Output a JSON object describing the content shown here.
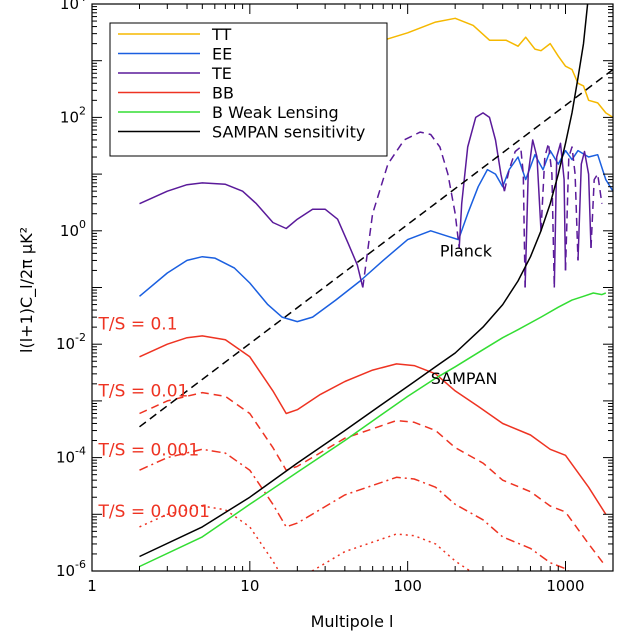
{
  "chart_data": {
    "type": "line",
    "title": "",
    "xlabel": "Multipole l",
    "ylabel": "l(l+1)C_l/2π μK²",
    "xscale": "log",
    "yscale": "log",
    "xlim": [
      1,
      2000
    ],
    "ylim": [
      1e-06,
      10000
    ],
    "x_ticks": [
      1,
      10,
      100,
      1000
    ],
    "y_ticks": [
      1e-06,
      0.0001,
      0.01,
      1,
      100,
      10000
    ],
    "x_tick_labels": [
      "1",
      "10",
      "100",
      "1000"
    ],
    "y_tick_labels": [
      {
        "base": "10",
        "exp": "-6"
      },
      {
        "base": "10",
        "exp": "-4"
      },
      {
        "base": "10",
        "exp": "-2"
      },
      {
        "base": "10",
        "exp": "0"
      },
      {
        "base": "10",
        "exp": "2"
      },
      {
        "base": "10",
        "exp": "4"
      }
    ],
    "legend_position": "top-left",
    "grid": false,
    "legend": [
      {
        "label": "TT",
        "color": "#f5b800"
      },
      {
        "label": "EE",
        "color": "#1a5fe0"
      },
      {
        "label": "TE",
        "color": "#5a1a9a"
      },
      {
        "label": "BB",
        "color": "#ee3322"
      },
      {
        "label": "B Weak Lensing",
        "color": "#33dd33"
      },
      {
        "label": "SAMPAN sensitivity",
        "color": "#000000"
      }
    ],
    "annotations": [
      {
        "text": "Planck",
        "x": 160,
        "y": 0.35
      },
      {
        "text": "SAMPAN",
        "x": 140,
        "y": 0.002
      },
      {
        "text": "T/S = 0.1",
        "x": 1.1,
        "y": 0.018
      },
      {
        "text": "T/S = 0.01",
        "x": 1.1,
        "y": 0.0012
      },
      {
        "text": "T/S = 0.001",
        "x": 1.1,
        "y": 0.00011
      },
      {
        "text": "T/S = 0.0001",
        "x": 1.1,
        "y": 9e-06
      }
    ],
    "series": [
      {
        "name": "TT",
        "color": "#f5b800",
        "style": "solid",
        "points": [
          [
            2,
            1000
          ],
          [
            3,
            950
          ],
          [
            5,
            880
          ],
          [
            8,
            860
          ],
          [
            12,
            900
          ],
          [
            20,
            1050
          ],
          [
            35,
            1400
          ],
          [
            60,
            2000
          ],
          [
            100,
            3100
          ],
          [
            150,
            4800
          ],
          [
            200,
            5600
          ],
          [
            260,
            4200
          ],
          [
            330,
            2300
          ],
          [
            420,
            2300
          ],
          [
            500,
            1800
          ],
          [
            560,
            2600
          ],
          [
            640,
            1600
          ],
          [
            700,
            1500
          ],
          [
            800,
            2000
          ],
          [
            900,
            1200
          ],
          [
            1000,
            800
          ],
          [
            1100,
            700
          ],
          [
            1200,
            400
          ],
          [
            1300,
            360
          ],
          [
            1400,
            200
          ],
          [
            1600,
            180
          ],
          [
            1800,
            120
          ],
          [
            2000,
            100
          ]
        ]
      },
      {
        "name": "EE",
        "color": "#1a5fe0",
        "style": "solid",
        "points": [
          [
            2,
            0.07
          ],
          [
            3,
            0.18
          ],
          [
            4,
            0.3
          ],
          [
            5,
            0.35
          ],
          [
            6,
            0.33
          ],
          [
            8,
            0.22
          ],
          [
            10,
            0.12
          ],
          [
            13,
            0.05
          ],
          [
            16,
            0.03
          ],
          [
            20,
            0.025
          ],
          [
            25,
            0.03
          ],
          [
            35,
            0.06
          ],
          [
            50,
            0.13
          ],
          [
            70,
            0.3
          ],
          [
            100,
            0.7
          ],
          [
            140,
            1.0
          ],
          [
            180,
            0.8
          ],
          [
            210,
            0.7
          ],
          [
            240,
            2.0
          ],
          [
            280,
            6
          ],
          [
            320,
            12
          ],
          [
            360,
            10
          ],
          [
            400,
            6
          ],
          [
            440,
            12
          ],
          [
            500,
            20
          ],
          [
            560,
            8
          ],
          [
            640,
            22
          ],
          [
            720,
            12
          ],
          [
            800,
            26
          ],
          [
            900,
            15
          ],
          [
            1000,
            26
          ],
          [
            1100,
            18
          ],
          [
            1200,
            26
          ],
          [
            1400,
            20
          ],
          [
            1600,
            22
          ],
          [
            1800,
            8
          ],
          [
            2000,
            5
          ]
        ]
      },
      {
        "name": "TE",
        "color": "#5a1a9a",
        "style": "solid",
        "points": [
          [
            2,
            3.0
          ],
          [
            3,
            5
          ],
          [
            4,
            6.5
          ],
          [
            5,
            7
          ],
          [
            7,
            6.6
          ],
          [
            9,
            5
          ],
          [
            11,
            3
          ],
          [
            14,
            1.4
          ],
          [
            17,
            1.1
          ],
          [
            20,
            1.6
          ],
          [
            25,
            2.4
          ],
          [
            30,
            2.4
          ],
          [
            36,
            1.6
          ],
          [
            42,
            0.6
          ],
          [
            48,
            0.25
          ],
          [
            52,
            0.1
          ]
        ]
      },
      {
        "name": "TE",
        "color": "#5a1a9a",
        "style": "dashed",
        "points": [
          [
            52,
            0.1
          ],
          [
            60,
            2
          ],
          [
            75,
            15
          ],
          [
            95,
            40
          ],
          [
            120,
            55
          ],
          [
            140,
            50
          ],
          [
            160,
            30
          ],
          [
            180,
            10
          ],
          [
            200,
            2
          ],
          [
            212,
            0.5
          ]
        ]
      },
      {
        "name": "TE",
        "color": "#5a1a9a",
        "style": "solid",
        "points": [
          [
            212,
            0.5
          ],
          [
            220,
            3
          ],
          [
            240,
            30
          ],
          [
            270,
            100
          ],
          [
            300,
            120
          ],
          [
            330,
            100
          ],
          [
            360,
            40
          ],
          [
            390,
            10
          ],
          [
            410,
            5
          ]
        ]
      },
      {
        "name": "TE",
        "color": "#5a1a9a",
        "style": "dashed",
        "points": [
          [
            410,
            5
          ],
          [
            440,
            12
          ],
          [
            480,
            25
          ],
          [
            520,
            30
          ],
          [
            540,
            10
          ],
          [
            555,
            0.1
          ]
        ]
      },
      {
        "name": "TE",
        "color": "#5a1a9a",
        "style": "solid",
        "points": [
          [
            555,
            0.1
          ],
          [
            580,
            10
          ],
          [
            620,
            40
          ],
          [
            660,
            20
          ],
          [
            700,
            1
          ]
        ]
      },
      {
        "name": "TE",
        "color": "#5a1a9a",
        "style": "dashed",
        "points": [
          [
            700,
            1
          ],
          [
            740,
            20
          ],
          [
            780,
            35
          ],
          [
            820,
            10
          ],
          [
            850,
            0.1
          ]
        ]
      },
      {
        "name": "TE",
        "color": "#5a1a9a",
        "style": "solid",
        "points": [
          [
            850,
            0.1
          ],
          [
            880,
            20
          ],
          [
            930,
            35
          ],
          [
            980,
            8
          ],
          [
            1000,
            0.2
          ]
        ]
      },
      {
        "name": "TE",
        "color": "#5a1a9a",
        "style": "dashed",
        "points": [
          [
            1000,
            0.2
          ],
          [
            1050,
            20
          ],
          [
            1100,
            30
          ],
          [
            1150,
            10
          ],
          [
            1200,
            0.3
          ]
        ]
      },
      {
        "name": "TE",
        "color": "#5a1a9a",
        "style": "solid",
        "points": [
          [
            1200,
            0.3
          ],
          [
            1260,
            15
          ],
          [
            1320,
            25
          ],
          [
            1400,
            10
          ],
          [
            1450,
            0.5
          ]
        ]
      },
      {
        "name": "TE",
        "color": "#5a1a9a",
        "style": "dashed",
        "points": [
          [
            1450,
            0.5
          ],
          [
            1520,
            8
          ],
          [
            1600,
            10
          ],
          [
            1700,
            3
          ]
        ]
      },
      {
        "name": "BB",
        "color": "#ee3322",
        "style": "solid",
        "points": [
          [
            2,
            0.006
          ],
          [
            3,
            0.01
          ],
          [
            4,
            0.013
          ],
          [
            5,
            0.014
          ],
          [
            7,
            0.012
          ],
          [
            10,
            0.006
          ],
          [
            14,
            0.0015
          ],
          [
            17,
            0.0006
          ],
          [
            20,
            0.0007
          ],
          [
            28,
            0.0013
          ],
          [
            40,
            0.0022
          ],
          [
            60,
            0.0035
          ],
          [
            85,
            0.0045
          ],
          [
            110,
            0.0042
          ],
          [
            150,
            0.003
          ],
          [
            200,
            0.0015
          ],
          [
            280,
            0.0008
          ],
          [
            400,
            0.0004
          ],
          [
            600,
            0.00025
          ],
          [
            800,
            0.00014
          ],
          [
            1000,
            0.00011
          ],
          [
            1400,
            3e-05
          ],
          [
            1800,
            1e-05
          ]
        ]
      },
      {
        "name": "BB",
        "color": "#ee3322",
        "style": "dashed",
        "points": [
          [
            2,
            0.0006
          ],
          [
            3,
            0.001
          ],
          [
            5,
            0.0014
          ],
          [
            7,
            0.0012
          ],
          [
            10,
            0.0006
          ],
          [
            14,
            0.00015
          ],
          [
            17,
            6e-05
          ],
          [
            20,
            7e-05
          ],
          [
            40,
            0.00022
          ],
          [
            85,
            0.00045
          ],
          [
            110,
            0.00042
          ],
          [
            150,
            0.0003
          ],
          [
            200,
            0.00015
          ],
          [
            300,
            8e-05
          ],
          [
            400,
            4e-05
          ],
          [
            600,
            2.5e-05
          ],
          [
            800,
            1.4e-05
          ],
          [
            1000,
            1.1e-05
          ],
          [
            1400,
            3e-06
          ],
          [
            1800,
            1.2e-06
          ]
        ]
      },
      {
        "name": "BB",
        "color": "#ee3322",
        "style": "dashdot",
        "points": [
          [
            2,
            6e-05
          ],
          [
            3,
            0.0001
          ],
          [
            5,
            0.00014
          ],
          [
            7,
            0.00012
          ],
          [
            10,
            6e-05
          ],
          [
            14,
            1.5e-05
          ],
          [
            17,
            6e-06
          ],
          [
            20,
            7e-06
          ],
          [
            40,
            2.2e-05
          ],
          [
            85,
            4.5e-05
          ],
          [
            110,
            4.2e-05
          ],
          [
            150,
            3e-05
          ],
          [
            200,
            1.5e-05
          ],
          [
            300,
            8e-06
          ],
          [
            400,
            4e-06
          ],
          [
            600,
            2.5e-06
          ],
          [
            800,
            1.4e-06
          ],
          [
            1000,
            1.1e-06
          ],
          [
            1200,
            7e-07
          ]
        ]
      },
      {
        "name": "BB",
        "color": "#ee3322",
        "style": "dotted",
        "points": [
          [
            2,
            6e-06
          ],
          [
            3,
            1e-05
          ],
          [
            5,
            1.4e-05
          ],
          [
            7,
            1.2e-05
          ],
          [
            10,
            6e-06
          ],
          [
            14,
            1.5e-06
          ],
          [
            17,
            6e-07
          ],
          [
            20,
            7e-07
          ],
          [
            40,
            2.2e-06
          ],
          [
            85,
            4.5e-06
          ],
          [
            110,
            4.2e-06
          ],
          [
            150,
            3e-06
          ],
          [
            200,
            1.5e-06
          ],
          [
            280,
            8e-07
          ],
          [
            350,
            5e-07
          ]
        ]
      },
      {
        "name": "B Weak Lensing",
        "color": "#33dd33",
        "style": "solid",
        "points": [
          [
            2,
            1.2e-06
          ],
          [
            5,
            4e-06
          ],
          [
            10,
            1.5e-05
          ],
          [
            20,
            5.5e-05
          ],
          [
            40,
            0.0002
          ],
          [
            70,
            0.0006
          ],
          [
            100,
            0.0012
          ],
          [
            150,
            0.0025
          ],
          [
            200,
            0.004
          ],
          [
            300,
            0.008
          ],
          [
            400,
            0.013
          ],
          [
            500,
            0.018
          ],
          [
            700,
            0.03
          ],
          [
            900,
            0.045
          ],
          [
            1100,
            0.06
          ],
          [
            1300,
            0.07
          ],
          [
            1500,
            0.08
          ],
          [
            1700,
            0.075
          ],
          [
            1800,
            0.08
          ]
        ]
      },
      {
        "name": "SAMPAN sensitivity",
        "color": "#000000",
        "style": "solid",
        "points": [
          [
            2,
            1.8e-06
          ],
          [
            5,
            6e-06
          ],
          [
            10,
            2e-05
          ],
          [
            20,
            8e-05
          ],
          [
            40,
            0.0003
          ],
          [
            70,
            0.0009
          ],
          [
            100,
            0.0018
          ],
          [
            150,
            0.004
          ],
          [
            200,
            0.007
          ],
          [
            300,
            0.02
          ],
          [
            400,
            0.05
          ],
          [
            500,
            0.13
          ],
          [
            600,
            0.35
          ],
          [
            700,
            1.0
          ],
          [
            800,
            3
          ],
          [
            900,
            10
          ],
          [
            1000,
            35
          ],
          [
            1100,
            120
          ],
          [
            1200,
            500
          ],
          [
            1300,
            2000
          ],
          [
            1380,
            10000
          ]
        ]
      },
      {
        "name": "Planck",
        "color": "#000000",
        "style": "dashed",
        "points": [
          [
            2,
            0.00035
          ],
          [
            2000,
            700
          ]
        ]
      }
    ]
  }
}
